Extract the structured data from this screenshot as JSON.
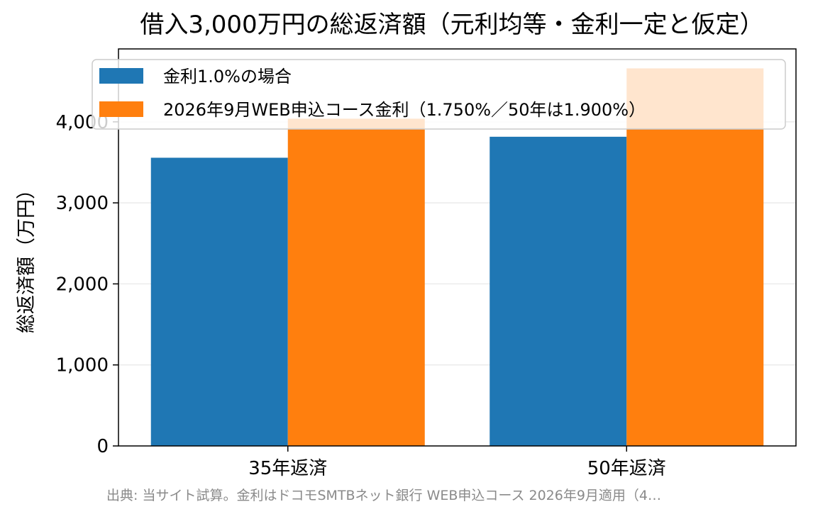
{
  "chart_data": {
    "type": "bar",
    "title": "借入3,000万円の総返済額（元利均等・金利一定と仮定）",
    "xlabel": "",
    "ylabel": "総返済額（万円）",
    "categories": [
      "35年返済",
      "50年返済"
    ],
    "series": [
      {
        "name": "金利1.0%の場合",
        "values": [
          3557,
          3816
        ],
        "color": "#1f77b4"
      },
      {
        "name": "2026年9月WEB申込コース金利（1.750%／50年は1.900%）",
        "values": [
          4039,
          4660
        ],
        "color": "#ff7f0e"
      }
    ],
    "ylim": [
      0,
      4900
    ],
    "yticks": [
      0,
      1000,
      2000,
      3000,
      4000
    ],
    "ytick_labels": [
      "0",
      "1,000",
      "2,000",
      "3,000",
      "4,000"
    ],
    "grid": "horizontal",
    "legend_position": "top",
    "source_note": "出典: 当サイト試算。金利はドコモSMTBネット銀行 WEB申込コース 2026年9月適用（4…"
  }
}
